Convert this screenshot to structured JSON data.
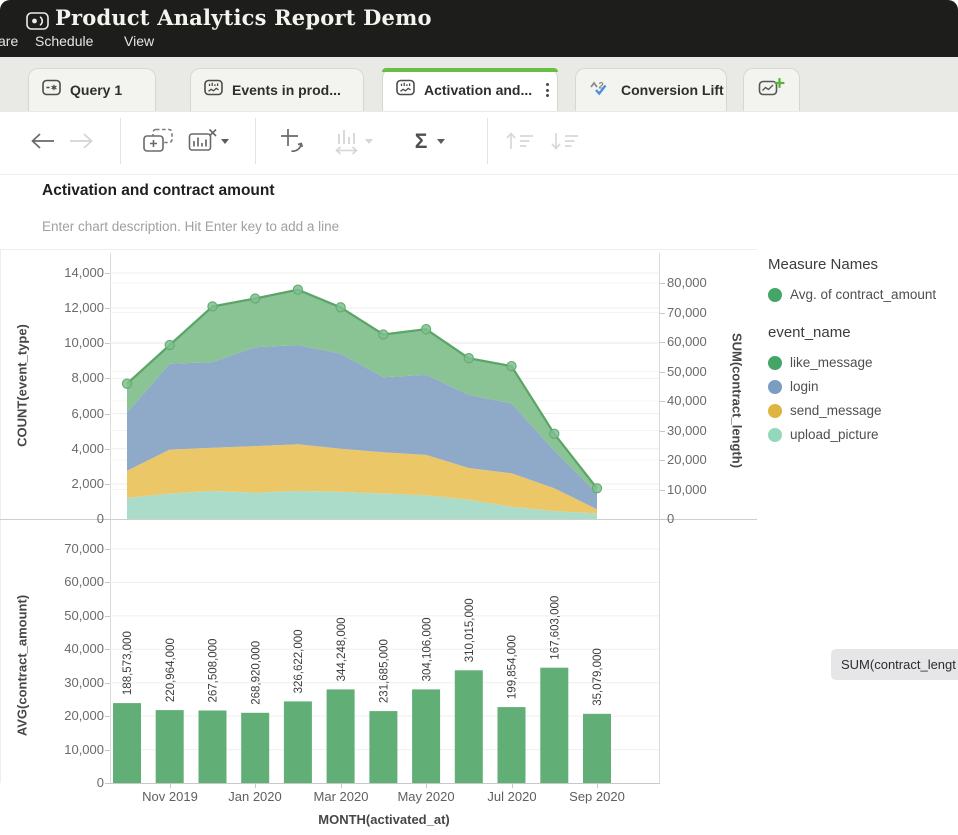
{
  "header": {
    "title": "Product Analytics Report Demo",
    "logo_icon": "projector-icon",
    "menu": [
      {
        "label": "are"
      },
      {
        "label": "Schedule"
      },
      {
        "label": "View"
      }
    ]
  },
  "tabs": {
    "items": [
      {
        "label": "Query 1",
        "icon": "query-icon",
        "active": false
      },
      {
        "label": "Events in prod...",
        "icon": "chart-icon",
        "active": false
      },
      {
        "label": "Activation and...",
        "icon": "chart-icon",
        "active": true,
        "has_menu": true
      },
      {
        "label": "Conversion Lift",
        "icon": "ab-test-icon",
        "active": false
      }
    ],
    "new_tab_icon": "add-chart-icon"
  },
  "toolbar": {
    "buttons": [
      {
        "name": "back",
        "icon": "back-arrow-icon",
        "enabled": true
      },
      {
        "name": "forward",
        "icon": "forward-arrow-icon",
        "enabled": false
      },
      {
        "name": "duplicate-chart",
        "icon": "duplicate-icon",
        "enabled": true
      },
      {
        "name": "remove-chart",
        "icon": "chart-x-icon",
        "enabled": true,
        "has_dropdown": true
      },
      {
        "name": "pivot",
        "icon": "pivot-icon",
        "enabled": true
      },
      {
        "name": "bar-width",
        "icon": "bar-width-icon",
        "enabled": false,
        "has_dropdown": true
      },
      {
        "name": "aggregate",
        "icon": "sigma-icon",
        "label": "Σ",
        "enabled": true,
        "has_dropdown": true
      },
      {
        "name": "sort-ascending",
        "icon": "sort-asc-icon",
        "enabled": false
      },
      {
        "name": "sort-descending",
        "icon": "sort-desc-icon",
        "enabled": false
      }
    ]
  },
  "chart_header": {
    "title": "Activation and contract amount",
    "description_placeholder": "Enter chart description. Hit Enter key to add a line"
  },
  "legend": {
    "measure_title": "Measure Names",
    "measure_items": [
      {
        "label": "Avg. of contract_amount",
        "color": "#45a566"
      }
    ],
    "dimension_title": "event_name",
    "dimension_items": [
      {
        "label": "like_message",
        "color": "#45a566"
      },
      {
        "label": "login",
        "color": "#7b9dc2"
      },
      {
        "label": "send_message",
        "color": "#e0b440"
      },
      {
        "label": "upload_picture",
        "color": "#93d8bd"
      }
    ]
  },
  "pill": {
    "label": "SUM(contract_lengt"
  },
  "chart_data": [
    {
      "type": "area",
      "stacked": true,
      "x": [
        "Oct 2019",
        "Nov 2019",
        "Dec 2019",
        "Jan 2020",
        "Feb 2020",
        "Mar 2020",
        "Apr 2020",
        "May 2020",
        "Jun 2020",
        "Jul 2020",
        "Aug 2020",
        "Sep 2020"
      ],
      "x_tick_labels": [
        "Nov 2019",
        "Jan 2020",
        "Mar 2020",
        "May 2020",
        "Jul 2020",
        "Sep 2020"
      ],
      "x_tick_indices": [
        1,
        3,
        5,
        7,
        9,
        11
      ],
      "xlabel": "MONTH(activated_at)",
      "left_axis": {
        "label": "COUNT(event_type)",
        "ticks": [
          0,
          2000,
          4000,
          6000,
          8000,
          10000,
          12000,
          14000
        ],
        "max": 14000
      },
      "right_axis": {
        "label": "SUM(contract_length)",
        "ticks": [
          0,
          10000,
          20000,
          30000,
          40000,
          50000,
          60000,
          70000,
          80000
        ],
        "max": 80000
      },
      "series": [
        {
          "name": "upload_picture",
          "color": "#abdcc9",
          "values": [
            1200,
            1450,
            1600,
            1500,
            1600,
            1550,
            1450,
            1350,
            1100,
            700,
            450,
            320
          ]
        },
        {
          "name": "send_message",
          "color": "#ecc768",
          "values": [
            1550,
            2500,
            2450,
            2650,
            2650,
            2450,
            2350,
            2300,
            1800,
            1900,
            1300,
            230
          ]
        },
        {
          "name": "login",
          "color": "#8fa9c8",
          "values": [
            3300,
            4880,
            4880,
            5630,
            5650,
            5400,
            4270,
            4550,
            4160,
            3980,
            2150,
            910
          ]
        },
        {
          "name": "like_message",
          "color": "#8ac394",
          "values": [
            1650,
            1070,
            3170,
            2770,
            3150,
            2650,
            2430,
            2600,
            2090,
            2120,
            950,
            290
          ]
        }
      ],
      "line": {
        "name": "Avg. of contract_amount",
        "color": "#54a263",
        "dot_color": "#7fbf8e",
        "values": [
          7700,
          9900,
          12100,
          12550,
          13050,
          12050,
          10500,
          10800,
          9150,
          8700,
          4850,
          1750
        ]
      }
    },
    {
      "type": "bar",
      "x": [
        "Oct 2019",
        "Nov 2019",
        "Dec 2019",
        "Jan 2020",
        "Feb 2020",
        "Mar 2020",
        "Apr 2020",
        "May 2020",
        "Jun 2020",
        "Jul 2020",
        "Aug 2020",
        "Sep 2020"
      ],
      "xlabel": "MONTH(activated_at)",
      "ylabel": "AVG(contract_amount)",
      "yticks": [
        0,
        10000,
        20000,
        30000,
        40000,
        50000,
        60000,
        70000
      ],
      "ymax": 70000,
      "bar_color": "#61ae77",
      "values": [
        23900,
        21800,
        21700,
        21000,
        24400,
        28000,
        21500,
        28000,
        33700,
        22700,
        34500,
        20700
      ],
      "bar_labels": [
        "188,573,000",
        "220,964,000",
        "267,508,000",
        "268,920,000",
        "326,622,000",
        "344,248,000",
        "231,685,000",
        "304,106,000",
        "310,015,000",
        "199,854,000",
        "167,603,000",
        "35,079,000"
      ]
    }
  ]
}
